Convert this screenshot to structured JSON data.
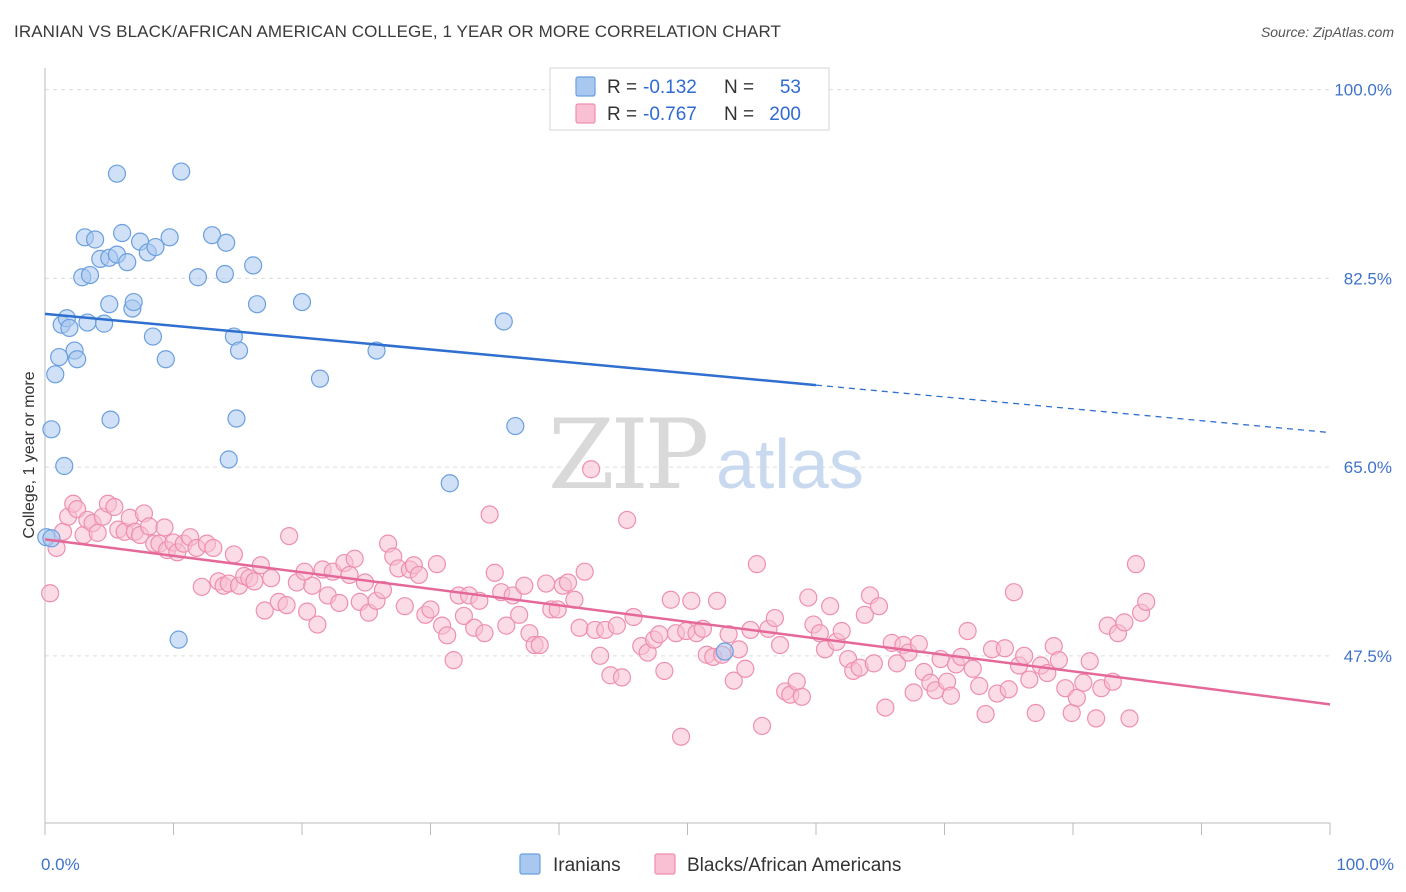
{
  "title": "IRANIAN VS BLACK/AFRICAN AMERICAN COLLEGE, 1 YEAR OR MORE CORRELATION CHART",
  "source": "Source: ZipAtlas.com",
  "watermark": {
    "zip": "ZIP",
    "atlas": "atlas"
  },
  "legend": {
    "rows": [
      {
        "r_label": "R =",
        "r_value": "-0.132",
        "n_label": "N =",
        "n_value": "53"
      },
      {
        "r_label": "R =",
        "r_value": "-0.767",
        "n_label": "N =",
        "n_value": "200"
      }
    ]
  },
  "chart_data": {
    "type": "scatter",
    "title": "IRANIAN VS BLACK/AFRICAN AMERICAN COLLEGE, 1 YEAR OR MORE CORRELATION CHART",
    "xlabel": "",
    "ylabel": "College, 1 year or more",
    "xlim": [
      0,
      100
    ],
    "ylim": [
      32,
      102
    ],
    "x_tick_labels": [
      "0.0%",
      "100.0%"
    ],
    "y_ticks": [
      47.5,
      65.0,
      82.5,
      100.0
    ],
    "y_tick_labels": [
      "47.5%",
      "65.0%",
      "82.5%",
      "100.0%"
    ],
    "grid": true,
    "legend_position": "top-center",
    "series": [
      {
        "name": "Iranians",
        "color": "#a9c8f0",
        "stroke": "#6b9fdf",
        "line_color": "#2f6fcf",
        "r": -0.132,
        "n": 53,
        "trend": {
          "x0": 0,
          "y0": 79.2,
          "x1": 60,
          "y1": 72.6,
          "dash_x1": 100,
          "dash_y1": 68.2
        },
        "points": [
          [
            0.1,
            58.5
          ],
          [
            0.5,
            68.5
          ],
          [
            0.8,
            73.6
          ],
          [
            1.1,
            75.2
          ],
          [
            1.3,
            78.2
          ],
          [
            1.5,
            65.1
          ],
          [
            1.7,
            78.8
          ],
          [
            1.9,
            77.9
          ],
          [
            2.3,
            75.8
          ],
          [
            2.5,
            75.0
          ],
          [
            2.9,
            82.6
          ],
          [
            3.1,
            86.3
          ],
          [
            3.3,
            78.4
          ],
          [
            3.5,
            82.8
          ],
          [
            3.9,
            86.1
          ],
          [
            4.3,
            84.3
          ],
          [
            4.6,
            78.3
          ],
          [
            5.0,
            84.4
          ],
          [
            5.0,
            80.1
          ],
          [
            5.1,
            69.4
          ],
          [
            5.6,
            84.7
          ],
          [
            5.6,
            92.2
          ],
          [
            6.0,
            86.7
          ],
          [
            6.4,
            84.0
          ],
          [
            6.8,
            79.7
          ],
          [
            6.9,
            80.3
          ],
          [
            7.4,
            85.9
          ],
          [
            8.0,
            84.9
          ],
          [
            8.4,
            77.1
          ],
          [
            8.6,
            85.4
          ],
          [
            9.4,
            75.0
          ],
          [
            9.7,
            86.3
          ],
          [
            10.4,
            49.0
          ],
          [
            10.6,
            92.4
          ],
          [
            11.9,
            82.6
          ],
          [
            13.0,
            86.5
          ],
          [
            14.0,
            82.9
          ],
          [
            14.1,
            85.8
          ],
          [
            14.3,
            65.7
          ],
          [
            14.7,
            77.1
          ],
          [
            14.9,
            69.5
          ],
          [
            15.1,
            75.8
          ],
          [
            16.2,
            83.7
          ],
          [
            16.5,
            80.1
          ],
          [
            20.0,
            80.3
          ],
          [
            21.4,
            73.2
          ],
          [
            25.8,
            75.8
          ],
          [
            31.5,
            63.5
          ],
          [
            35.7,
            78.5
          ],
          [
            36.6,
            68.8
          ],
          [
            52.4,
            100.4
          ],
          [
            52.9,
            47.9
          ],
          [
            0.5,
            58.4
          ]
        ]
      },
      {
        "name": "Blacks/African Americans",
        "color": "#f8c0d2",
        "stroke": "#ee8fb0",
        "line_color": "#e4699a",
        "r": -0.767,
        "n": 200,
        "trend": {
          "x0": 0,
          "y0": 58.3,
          "x1": 100,
          "y1": 43.0
        },
        "points": [
          [
            0.4,
            53.3
          ],
          [
            0.9,
            57.5
          ],
          [
            1.4,
            59.0
          ],
          [
            1.8,
            60.4
          ],
          [
            2.2,
            61.6
          ],
          [
            2.5,
            61.1
          ],
          [
            3.0,
            58.7
          ],
          [
            3.3,
            60.1
          ],
          [
            3.7,
            59.8
          ],
          [
            4.1,
            58.9
          ],
          [
            4.5,
            60.4
          ],
          [
            4.9,
            61.6
          ],
          [
            5.4,
            61.3
          ],
          [
            5.7,
            59.2
          ],
          [
            6.2,
            59.0
          ],
          [
            6.6,
            60.3
          ],
          [
            7.0,
            59.0
          ],
          [
            7.4,
            58.7
          ],
          [
            7.7,
            60.7
          ],
          [
            8.1,
            59.5
          ],
          [
            8.5,
            57.9
          ],
          [
            8.9,
            57.9
          ],
          [
            9.3,
            59.4
          ],
          [
            9.5,
            57.3
          ],
          [
            10.0,
            58.0
          ],
          [
            10.3,
            57.1
          ],
          [
            10.8,
            57.9
          ],
          [
            11.3,
            58.5
          ],
          [
            11.8,
            57.5
          ],
          [
            12.2,
            53.9
          ],
          [
            12.6,
            57.9
          ],
          [
            13.1,
            57.5
          ],
          [
            13.5,
            54.4
          ],
          [
            13.9,
            54.0
          ],
          [
            14.3,
            54.2
          ],
          [
            14.7,
            56.9
          ],
          [
            15.1,
            54.0
          ],
          [
            15.5,
            54.9
          ],
          [
            15.9,
            54.7
          ],
          [
            16.3,
            54.4
          ],
          [
            16.8,
            55.9
          ],
          [
            17.1,
            51.7
          ],
          [
            17.6,
            54.7
          ],
          [
            18.2,
            52.5
          ],
          [
            18.8,
            52.2
          ],
          [
            19.0,
            58.6
          ],
          [
            19.6,
            54.3
          ],
          [
            20.2,
            55.3
          ],
          [
            20.4,
            51.6
          ],
          [
            20.8,
            54.0
          ],
          [
            21.2,
            50.4
          ],
          [
            21.6,
            55.5
          ],
          [
            22.0,
            53.1
          ],
          [
            22.4,
            55.3
          ],
          [
            22.9,
            52.4
          ],
          [
            23.3,
            56.1
          ],
          [
            23.7,
            55.0
          ],
          [
            24.1,
            56.5
          ],
          [
            24.5,
            52.5
          ],
          [
            24.9,
            54.3
          ],
          [
            25.2,
            51.5
          ],
          [
            25.8,
            52.6
          ],
          [
            26.3,
            53.6
          ],
          [
            26.7,
            57.9
          ],
          [
            27.1,
            56.7
          ],
          [
            27.5,
            55.6
          ],
          [
            28.0,
            52.1
          ],
          [
            28.4,
            55.5
          ],
          [
            28.7,
            55.9
          ],
          [
            29.1,
            55.0
          ],
          [
            29.6,
            51.3
          ],
          [
            30.0,
            51.8
          ],
          [
            30.5,
            56.0
          ],
          [
            30.9,
            50.3
          ],
          [
            31.3,
            49.4
          ],
          [
            31.8,
            47.1
          ],
          [
            32.2,
            53.1
          ],
          [
            32.6,
            51.2
          ],
          [
            33.0,
            53.1
          ],
          [
            33.4,
            50.1
          ],
          [
            33.8,
            52.6
          ],
          [
            34.2,
            49.6
          ],
          [
            34.6,
            60.6
          ],
          [
            35.0,
            55.2
          ],
          [
            35.5,
            53.4
          ],
          [
            35.9,
            50.3
          ],
          [
            36.4,
            53.1
          ],
          [
            36.9,
            51.3
          ],
          [
            37.3,
            54.0
          ],
          [
            37.7,
            49.6
          ],
          [
            38.1,
            48.5
          ],
          [
            38.5,
            48.5
          ],
          [
            39.0,
            54.2
          ],
          [
            39.4,
            51.8
          ],
          [
            39.9,
            51.8
          ],
          [
            40.3,
            54.0
          ],
          [
            40.7,
            54.3
          ],
          [
            41.2,
            52.7
          ],
          [
            41.6,
            50.1
          ],
          [
            42.0,
            55.3
          ],
          [
            42.5,
            64.8
          ],
          [
            42.8,
            49.9
          ],
          [
            43.2,
            47.5
          ],
          [
            43.6,
            49.9
          ],
          [
            44.0,
            45.7
          ],
          [
            44.5,
            50.3
          ],
          [
            44.9,
            45.5
          ],
          [
            45.3,
            60.1
          ],
          [
            45.8,
            51.1
          ],
          [
            46.4,
            48.4
          ],
          [
            46.9,
            47.8
          ],
          [
            47.4,
            49.0
          ],
          [
            47.8,
            49.5
          ],
          [
            48.2,
            46.1
          ],
          [
            48.7,
            52.7
          ],
          [
            49.1,
            49.6
          ],
          [
            49.5,
            40.0
          ],
          [
            49.9,
            49.8
          ],
          [
            50.3,
            52.6
          ],
          [
            50.7,
            49.6
          ],
          [
            51.2,
            50.0
          ],
          [
            51.5,
            47.6
          ],
          [
            52.0,
            47.4
          ],
          [
            52.3,
            52.6
          ],
          [
            52.7,
            47.6
          ],
          [
            53.2,
            49.5
          ],
          [
            53.6,
            45.2
          ],
          [
            54.0,
            48.1
          ],
          [
            54.5,
            46.3
          ],
          [
            54.9,
            49.9
          ],
          [
            55.4,
            56.0
          ],
          [
            55.8,
            41.0
          ],
          [
            56.3,
            50.0
          ],
          [
            56.8,
            51.0
          ],
          [
            57.2,
            48.5
          ],
          [
            57.6,
            44.2
          ],
          [
            58.0,
            43.9
          ],
          [
            58.5,
            45.1
          ],
          [
            58.9,
            43.7
          ],
          [
            59.4,
            52.9
          ],
          [
            59.8,
            50.4
          ],
          [
            60.3,
            49.6
          ],
          [
            60.7,
            48.1
          ],
          [
            61.1,
            52.1
          ],
          [
            61.6,
            48.8
          ],
          [
            62.0,
            49.8
          ],
          [
            62.5,
            47.2
          ],
          [
            62.9,
            46.1
          ],
          [
            63.4,
            46.4
          ],
          [
            63.8,
            51.3
          ],
          [
            64.2,
            53.1
          ],
          [
            64.5,
            46.8
          ],
          [
            64.9,
            52.1
          ],
          [
            65.4,
            42.7
          ],
          [
            65.9,
            48.7
          ],
          [
            66.3,
            46.8
          ],
          [
            66.8,
            48.5
          ],
          [
            67.2,
            47.8
          ],
          [
            67.6,
            44.1
          ],
          [
            68.0,
            48.6
          ],
          [
            68.4,
            46.0
          ],
          [
            68.9,
            45.0
          ],
          [
            69.3,
            44.3
          ],
          [
            69.7,
            47.2
          ],
          [
            70.2,
            45.1
          ],
          [
            70.5,
            43.8
          ],
          [
            70.9,
            46.7
          ],
          [
            71.3,
            47.4
          ],
          [
            71.8,
            49.8
          ],
          [
            72.2,
            46.3
          ],
          [
            72.7,
            44.7
          ],
          [
            73.2,
            42.1
          ],
          [
            73.7,
            48.1
          ],
          [
            74.1,
            44.0
          ],
          [
            74.7,
            48.2
          ],
          [
            75.0,
            44.4
          ],
          [
            75.4,
            53.4
          ],
          [
            75.8,
            46.6
          ],
          [
            76.2,
            47.5
          ],
          [
            76.6,
            45.3
          ],
          [
            77.1,
            42.2
          ],
          [
            77.5,
            46.6
          ],
          [
            78.0,
            45.9
          ],
          [
            78.5,
            48.4
          ],
          [
            78.9,
            47.1
          ],
          [
            79.4,
            44.5
          ],
          [
            79.9,
            42.2
          ],
          [
            80.3,
            43.6
          ],
          [
            80.8,
            45.0
          ],
          [
            81.3,
            47.0
          ],
          [
            81.8,
            41.7
          ],
          [
            82.2,
            44.5
          ],
          [
            82.7,
            50.3
          ],
          [
            83.1,
            45.1
          ],
          [
            83.5,
            49.6
          ],
          [
            84.0,
            50.6
          ],
          [
            84.4,
            41.7
          ],
          [
            84.9,
            56.0
          ],
          [
            85.3,
            51.5
          ],
          [
            85.7,
            52.5
          ]
        ]
      }
    ]
  }
}
